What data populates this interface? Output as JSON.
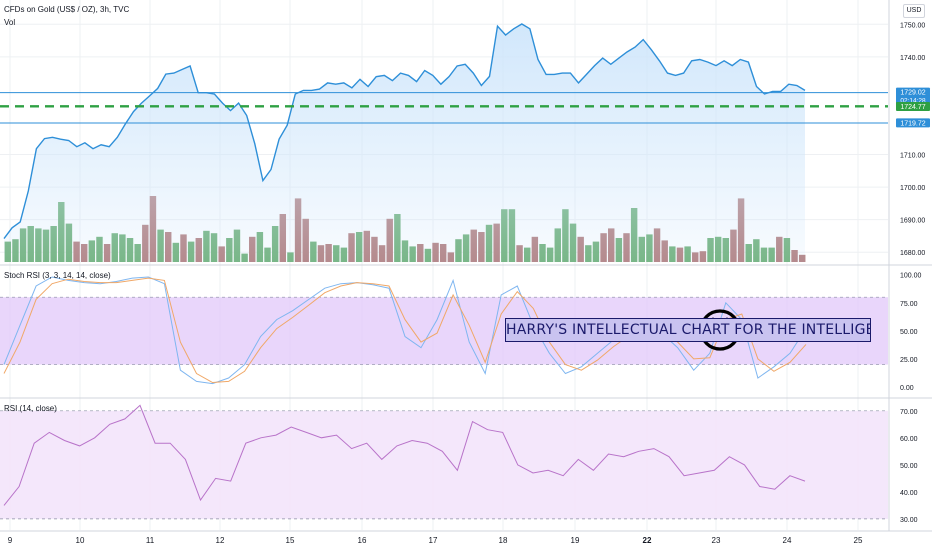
{
  "header": {
    "title": "CFDs on Gold (US$ / OZ), 3h, TVC",
    "volume_label": "Vol",
    "currency_button": "USD"
  },
  "annotation": {
    "text": "HARRY'S INTELLECTUAL CHART FOR THE INTELLIGENT",
    "emoji": "smiley-face-icon"
  },
  "colors": {
    "price_line": "#2e8fd8",
    "price_fill": "#cfe6fb",
    "volume_up": "#6aae74",
    "volume_down": "#b07a7a",
    "support_dashed": "#2ea043",
    "stoch_k": "#7fb6f0",
    "stoch_d": "#f0a868",
    "stoch_band": "#e2c8fa",
    "rsi_line": "#b873c9",
    "rsi_band": "#f3e4fb",
    "annotation_fill": "#c9c3f0",
    "annotation_text": "#1b1a6b"
  },
  "chart_data": [
    {
      "type": "line",
      "pane": "price",
      "series": [
        {
          "name": "CFDs on Gold (US$ / OZ)",
          "values": [
            1684.2,
            1687.5,
            1689.3,
            1698.8,
            1711.8,
            1714.9,
            1715.3,
            1714.7,
            1714.3,
            1712.4,
            1713.6,
            1711.8,
            1713.0,
            1712.4,
            1715.3,
            1719.4,
            1723.2,
            1725.8,
            1728.0,
            1730.3,
            1734.7,
            1735.0,
            1736.1,
            1737.2,
            1729.0,
            1729.0,
            1728.6,
            1725.8,
            1723.5,
            1725.8,
            1722.0,
            1713.3,
            1702.0,
            1705.4,
            1714.7,
            1719.0,
            1728.6,
            1729.7,
            1729.7,
            1730.1,
            1732.0,
            1731.6,
            1732.0,
            1730.5,
            1733.1,
            1730.9,
            1733.9,
            1734.3,
            1732.7,
            1735.0,
            1734.3,
            1732.4,
            1735.8,
            1734.3,
            1731.6,
            1733.9,
            1737.2,
            1737.7,
            1735.0,
            1731.2,
            1734.0,
            1749.4,
            1746.7,
            1748.6,
            1750.1,
            1748.6,
            1739.2,
            1734.6,
            1734.6,
            1735.0,
            1735.0,
            1732.0,
            1734.6,
            1737.3,
            1739.6,
            1737.7,
            1739.6,
            1741.5,
            1743.0,
            1745.3,
            1742.2,
            1738.8,
            1735.0,
            1734.3,
            1735.0,
            1738.8,
            1739.2,
            1738.4,
            1737.3,
            1738.8,
            1737.3,
            1739.2,
            1738.4,
            1730.9,
            1728.6,
            1729.4,
            1729.4,
            1731.6,
            1731.2,
            1729.7
          ]
        }
      ],
      "ylim": [
        1677,
        1755
      ],
      "yticks": [
        1680.0,
        1690.0,
        1700.0,
        1710.0,
        1740.0,
        1750.0
      ],
      "ytick_labels": [
        "1680.00",
        "1690.00",
        "1700.00",
        "1710.00",
        "1740.00",
        "1750.00"
      ],
      "price_labels": [
        {
          "value": 1729.02,
          "text": "1729.02",
          "color": "#2e8fd8"
        },
        {
          "value": 1724.77,
          "text": "1724.77",
          "color": "#2ea043"
        },
        {
          "value": 1719.72,
          "text": "1719.72",
          "color": "#2e8fd8"
        }
      ],
      "countdown": "02:14:28",
      "horizontal_lines": [
        {
          "value": 1729.0,
          "style": "solid",
          "color": "#2e8fd8"
        },
        {
          "value": 1724.8,
          "style": "dashed",
          "color": "#2ea043"
        },
        {
          "value": 1719.7,
          "style": "solid",
          "color": "#2e8fd8"
        }
      ],
      "grid": true
    },
    {
      "type": "bar",
      "pane": "volume",
      "series": [
        {
          "name": "Vol",
          "values": [
            17,
            19,
            28,
            30,
            28,
            27,
            30,
            50,
            32,
            17,
            15,
            18,
            21,
            15,
            24,
            23,
            20,
            15,
            31,
            55,
            27,
            25,
            16,
            23,
            17,
            20,
            26,
            24,
            13,
            20,
            27,
            7,
            21,
            25,
            12,
            30,
            40,
            8,
            53,
            36,
            17,
            14,
            15,
            14,
            12,
            24,
            25,
            26,
            21,
            14,
            36,
            40,
            18,
            13,
            15,
            11,
            16,
            15,
            8,
            19,
            23,
            27,
            25,
            31,
            32,
            44,
            44,
            14,
            12,
            21,
            15,
            12,
            28,
            44,
            32,
            21,
            14,
            17,
            24,
            28,
            20,
            24,
            45,
            21,
            23,
            28,
            18,
            13,
            12,
            13,
            8,
            9,
            20,
            21,
            20,
            27,
            53,
            15,
            19,
            12,
            12,
            21,
            20,
            10,
            6
          ],
          "up": [
            true,
            true,
            true,
            true,
            true,
            true,
            true,
            true,
            true,
            false,
            false,
            true,
            true,
            false,
            true,
            true,
            true,
            true,
            false,
            false,
            true,
            false,
            true,
            false,
            true,
            false,
            true,
            true,
            false,
            true,
            true,
            true,
            false,
            true,
            true,
            true,
            false,
            true,
            false,
            false,
            true,
            false,
            false,
            true,
            true,
            false,
            true,
            false,
            false,
            false,
            false,
            true,
            true,
            true,
            false,
            true,
            false,
            false,
            false,
            true,
            true,
            false,
            false,
            true,
            false,
            true,
            true,
            false,
            true,
            false,
            true,
            true,
            true,
            true,
            true,
            false,
            true,
            true,
            false,
            false,
            true,
            false,
            true,
            true,
            true,
            false,
            false,
            true,
            false,
            true,
            false,
            false,
            true,
            true,
            true,
            false,
            false,
            true,
            true,
            true,
            true,
            false,
            true,
            false,
            false
          ]
        }
      ]
    },
    {
      "type": "line",
      "pane": "stoch-rsi",
      "title": "Stoch RSI (3, 3, 14, 14, close)",
      "series": [
        {
          "name": "K",
          "values": [
            20,
            55,
            90,
            98,
            95,
            93,
            92,
            94,
            97,
            98,
            92,
            15,
            5,
            3,
            8,
            20,
            45,
            60,
            68,
            78,
            88,
            92,
            93,
            91,
            88,
            45,
            35,
            60,
            95,
            40,
            12,
            82,
            90,
            55,
            30,
            12,
            18,
            30,
            42,
            50,
            55,
            48,
            35,
            15,
            30,
            75,
            60,
            8,
            18,
            30,
            52
          ]
        },
        {
          "name": "D",
          "values": [
            12,
            40,
            78,
            92,
            96,
            94,
            93,
            93,
            95,
            97,
            95,
            40,
            12,
            4,
            5,
            14,
            35,
            52,
            62,
            73,
            84,
            90,
            93,
            92,
            90,
            60,
            40,
            48,
            82,
            55,
            22,
            65,
            85,
            70,
            40,
            20,
            15,
            24,
            36,
            46,
            52,
            50,
            40,
            25,
            26,
            60,
            65,
            25,
            14,
            22,
            38
          ]
        }
      ],
      "ylim": [
        -8,
        106
      ],
      "yticks": [
        0,
        25,
        50,
        75,
        100
      ],
      "ytick_labels": [
        "0.00",
        "25.00",
        "50.00",
        "75.00",
        "100.00"
      ],
      "band": [
        20,
        80
      ]
    },
    {
      "type": "line",
      "pane": "rsi",
      "title": "RSI (14, close)",
      "series": [
        {
          "name": "RSI",
          "values": [
            35,
            42,
            58,
            62,
            59,
            57,
            60,
            65,
            67,
            72,
            58,
            58,
            52,
            37,
            45,
            44,
            58,
            60,
            61,
            64,
            62,
            60,
            61,
            56,
            58,
            52,
            57,
            59,
            58,
            55,
            48,
            66,
            63,
            62,
            50,
            47,
            48,
            46,
            52,
            48,
            54,
            53,
            55,
            56,
            53,
            46,
            47,
            48,
            53,
            50,
            42,
            41,
            46,
            44
          ]
        }
      ],
      "ylim": [
        27,
        74
      ],
      "yticks": [
        30,
        40,
        50,
        60,
        70
      ],
      "ytick_labels": [
        "30.00",
        "40.00",
        "50.00",
        "60.00",
        "70.00"
      ],
      "band": [
        30,
        70
      ]
    }
  ],
  "x_axis": {
    "labels": [
      "9",
      "10",
      "11",
      "12",
      "15",
      "16",
      "17",
      "18",
      "19",
      "22",
      "23",
      "24",
      "25"
    ],
    "bold": [
      "22"
    ]
  }
}
